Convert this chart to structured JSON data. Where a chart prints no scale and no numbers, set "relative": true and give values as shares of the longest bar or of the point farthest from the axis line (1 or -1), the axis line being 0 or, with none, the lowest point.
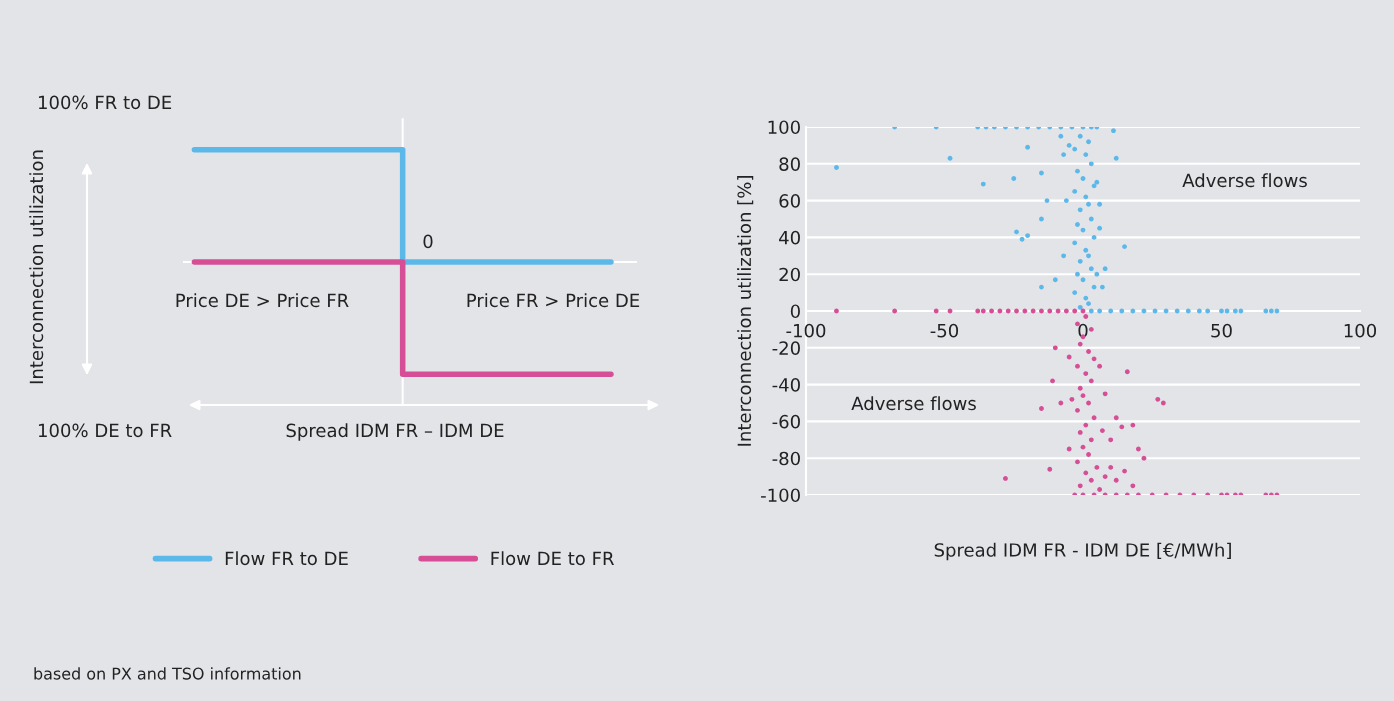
{
  "chart_data": [
    {
      "type": "step",
      "relative": true,
      "categories": [
        null,
        null,
        null
      ],
      "ylabel": "Interconnection utilization",
      "xlabel": "Spread IDM FR – IDM DE",
      "legend": "bottom",
      "series": [
        {
          "name": "Flow FR to DE",
          "color": "#5db8ea",
          "values": [
            1,
            1,
            0
          ]
        },
        {
          "name": "Flow DE to FR",
          "color": "#d64f96",
          "values": [
            0,
            0,
            -1
          ]
        }
      ],
      "annotations": [
        "100% FR to DE",
        "100% DE to FR",
        "0",
        "Price DE > Price FR",
        "Price FR > Price DE",
        "based on PX and TSO information"
      ]
    },
    {
      "type": "scatter",
      "xlabel": "Spread IDM FR - IDM DE [€/MWh]",
      "ylabel": "Interconnection utilization [%]",
      "xlim": [
        -100,
        100
      ],
      "xticks": [
        -100,
        -50,
        0,
        50,
        100
      ],
      "ylim": [
        -100,
        100
      ],
      "yticks": [
        -100,
        -80,
        -60,
        -40,
        -20,
        0,
        20,
        40,
        60,
        80,
        100
      ],
      "grid": "y",
      "marker": "circle",
      "series": [
        {
          "color": "#5db8ea",
          "x": [
            -68,
            -53,
            -38,
            -35,
            -32,
            -28,
            -24,
            -20,
            -16,
            -12,
            -8,
            -4,
            0,
            3,
            5,
            3,
            6,
            10,
            14,
            18,
            22,
            26,
            30,
            34,
            38,
            42,
            45,
            50,
            52,
            55,
            57,
            66,
            68,
            70,
            -1,
            2,
            -3,
            1,
            3,
            -2,
            0,
            4,
            -3,
            1,
            2,
            -1,
            3,
            -2,
            0,
            4,
            -3,
            1,
            2,
            -1,
            3,
            -2,
            0,
            4,
            -3,
            1,
            2,
            -1,
            -5,
            5,
            -6,
            6,
            -7,
            5,
            -89,
            -48,
            -36,
            -25,
            -24,
            -22,
            -20,
            -20,
            -15,
            -13,
            -15,
            -15,
            -10,
            12,
            11,
            15,
            -8,
            -7,
            8,
            7,
            6
          ],
          "values": [
            100,
            100,
            100,
            100,
            100,
            100,
            100,
            100,
            100,
            100,
            100,
            100,
            100,
            100,
            100,
            0,
            0,
            0,
            0,
            0,
            0,
            0,
            0,
            0,
            0,
            0,
            0,
            0,
            0,
            0,
            0,
            0,
            0,
            0,
            95,
            92,
            88,
            85,
            80,
            76,
            72,
            68,
            65,
            62,
            58,
            55,
            50,
            47,
            44,
            40,
            37,
            33,
            30,
            27,
            23,
            20,
            17,
            13,
            10,
            7,
            4,
            2,
            90,
            70,
            60,
            45,
            30,
            20,
            78,
            83,
            69,
            72,
            43,
            39,
            41,
            89,
            75,
            60,
            50,
            13,
            17,
            83,
            98,
            35,
            95,
            85,
            23,
            13,
            58
          ]
        },
        {
          "color": "#d64f96",
          "x": [
            -89,
            -68,
            -53,
            -48,
            -38,
            -36,
            -33,
            -30,
            -27,
            -24,
            -21,
            -18,
            -15,
            -12,
            -9,
            -6,
            -3,
            0,
            1,
            -2,
            3,
            0,
            -1,
            2,
            4,
            -2,
            1,
            3,
            -1,
            0,
            2,
            -2,
            4,
            1,
            -1,
            3,
            0,
            2,
            -2,
            5,
            1,
            3,
            -1,
            6,
            -5,
            7,
            -4,
            6,
            -5,
            8,
            -3,
            0,
            4,
            8,
            12,
            16,
            20,
            25,
            30,
            35,
            40,
            45,
            50,
            52,
            55,
            57,
            66,
            68,
            70,
            -28,
            -15,
            -10,
            -12,
            16,
            27,
            29,
            12,
            14,
            10,
            18,
            20,
            22,
            8,
            10,
            15,
            12,
            18,
            -11,
            -8
          ],
          "values": [
            0,
            0,
            0,
            0,
            0,
            0,
            0,
            0,
            0,
            0,
            0,
            0,
            0,
            0,
            0,
            0,
            0,
            0,
            -3,
            -7,
            -10,
            -14,
            -18,
            -22,
            -26,
            -30,
            -34,
            -38,
            -42,
            -46,
            -50,
            -54,
            -58,
            -62,
            -66,
            -70,
            -74,
            -78,
            -82,
            -85,
            -88,
            -92,
            -95,
            -97,
            -75,
            -65,
            -48,
            -30,
            -25,
            -90,
            -100,
            -100,
            -100,
            -100,
            -100,
            -100,
            -100,
            -100,
            -100,
            -100,
            -100,
            -100,
            -100,
            -100,
            -100,
            -100,
            -100,
            -100,
            -100,
            -91,
            -53,
            -20,
            -86,
            -33,
            -48,
            -50,
            -58,
            -63,
            -70,
            -62,
            -75,
            -80,
            -45,
            -85,
            -87,
            -92,
            -95,
            -38,
            -50
          ]
        }
      ],
      "annotations": [
        "Adverse flows",
        "Adverse flows"
      ]
    }
  ]
}
